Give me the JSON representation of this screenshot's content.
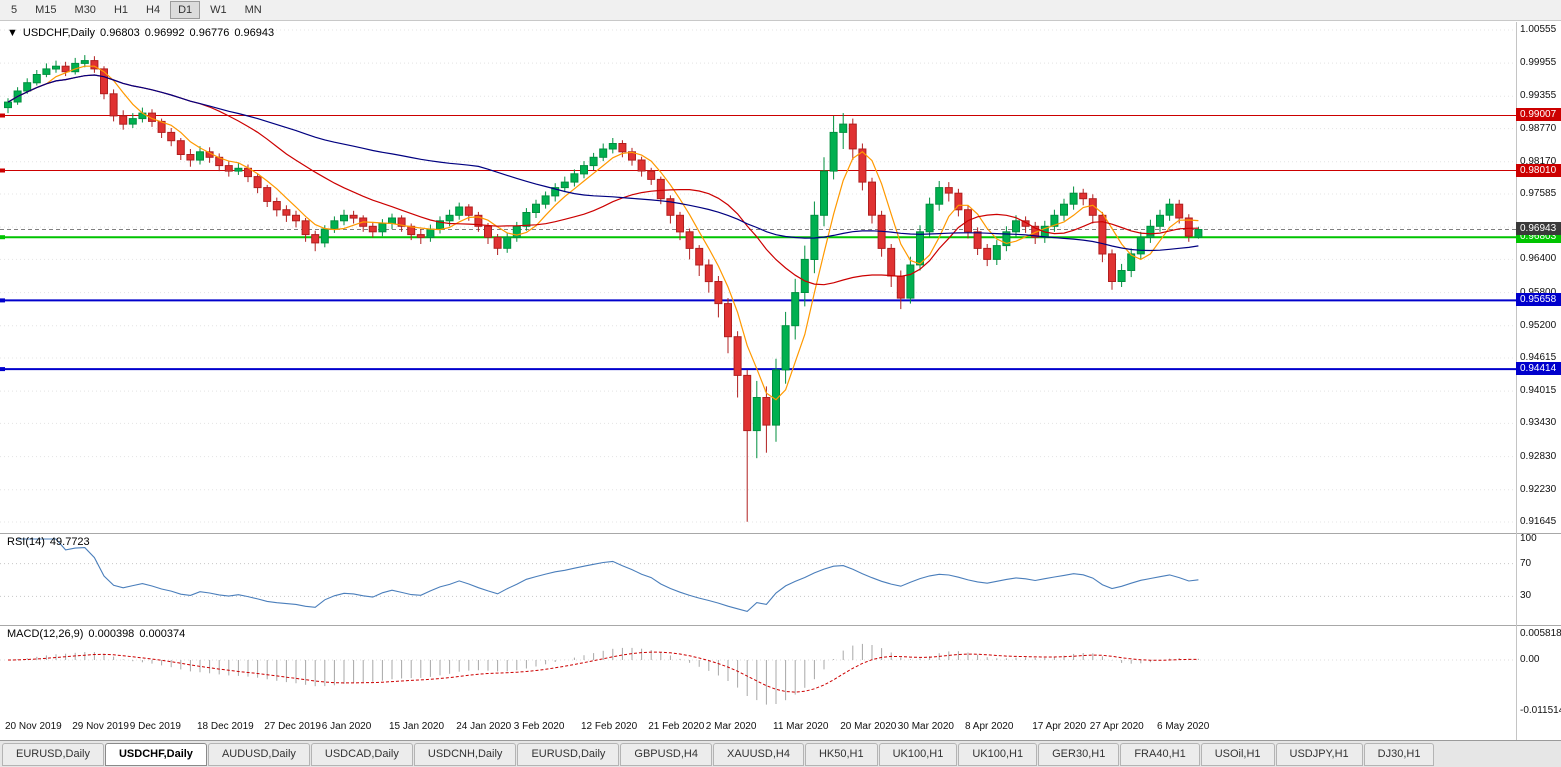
{
  "toolbar": {
    "timeframes": [
      "5",
      "M15",
      "M30",
      "H1",
      "H4",
      "D1",
      "W1",
      "MN"
    ],
    "active": "D1"
  },
  "chart": {
    "symbol_title": "USDCHF,Daily",
    "open": "0.96803",
    "high": "0.96992",
    "low": "0.96776",
    "close": "0.96943",
    "collapse_icon": "▼"
  },
  "levels": [
    {
      "value": 0.99007,
      "label": "0.99007",
      "color": "#cc0000",
      "width": 1
    },
    {
      "value": 0.9801,
      "label": "0.98010",
      "color": "#cc0000",
      "width": 1
    },
    {
      "value": 0.96803,
      "label": "0.96803",
      "color": "#00c400",
      "width": 2
    },
    {
      "value": 0.95658,
      "label": "0.95658",
      "color": "#0000cc",
      "width": 2
    },
    {
      "value": 0.94414,
      "label": "0.94414",
      "color": "#0000cc",
      "width": 2
    }
  ],
  "bid_line": {
    "value": 0.96943,
    "label": "0.96943",
    "color": "#808080",
    "box_color": "#3a3a3a"
  },
  "candle_colors": {
    "up": "#00b050",
    "up_stroke": "#008f3e",
    "down": "#e03232",
    "down_stroke": "#b01f1f"
  },
  "moving_averages": [
    {
      "period": 5,
      "color": "#ff9900"
    },
    {
      "period": 20,
      "color": "#cc0000"
    },
    {
      "period": 50,
      "color": "#000080"
    }
  ],
  "indicators": {
    "rsi": {
      "name": "RSI(14)",
      "value": "49.7723",
      "period": 14,
      "color": "#4a7ebb",
      "level_lines": [
        70,
        30
      ],
      "axis_labels": [
        {
          "label": "100",
          "value": 100
        },
        {
          "label": "70",
          "value": 70
        },
        {
          "label": "30",
          "value": 30
        }
      ]
    },
    "macd": {
      "name": "MACD(12,26,9)",
      "value1": "0.000398",
      "value2": "0.000374",
      "fast": 12,
      "slow": 26,
      "signal": 9,
      "histogram_color": "#a8a8a8",
      "signal_color": "#cc0000",
      "axis_labels": [
        {
          "label": "0.005818",
          "value": 0.005818
        },
        {
          "label": "0.00",
          "value": 0
        },
        {
          "label": "-0.011514",
          "value": -0.011514
        }
      ]
    }
  },
  "chart_data": {
    "type": "candlestick",
    "symbol": "USDCHF",
    "timeframe": "Daily",
    "format": "ohlc",
    "y_axis": {
      "top_value": 1.00555,
      "bottom_value": 0.91645
    },
    "y_ticks": [
      "1.00555",
      "0.99955",
      "0.99355",
      "0.98770",
      "0.98170",
      "0.97585",
      "0.96985",
      "0.96400",
      "0.95800",
      "0.95200",
      "0.94615",
      "0.94015",
      "0.93430",
      "0.92830",
      "0.92230",
      "0.91645"
    ],
    "x_labels": [
      "20 Nov 2019",
      "29 Nov 2019",
      "9 Dec 2019",
      "18 Dec 2019",
      "27 Dec 2019",
      "6 Jan 2020",
      "15 Jan 2020",
      "24 Jan 2020",
      "3 Feb 2020",
      "12 Feb 2020",
      "21 Feb 2020",
      "2 Mar 2020",
      "11 Mar 2020",
      "20 Mar 2020",
      "30 Mar 2020",
      "8 Apr 2020",
      "17 Apr 2020",
      "27 Apr 2020",
      "6 May 2020"
    ],
    "x_label_indices": [
      0,
      7,
      13,
      20,
      27,
      33,
      40,
      47,
      53,
      60,
      67,
      73,
      80,
      87,
      93,
      100,
      107,
      113,
      120
    ],
    "ohlc": [
      [
        0.9915,
        0.9932,
        0.9905,
        0.9925
      ],
      [
        0.9925,
        0.9952,
        0.992,
        0.9945
      ],
      [
        0.9945,
        0.9968,
        0.994,
        0.996
      ],
      [
        0.996,
        0.9983,
        0.9955,
        0.9975
      ],
      [
        0.9975,
        0.9995,
        0.997,
        0.9985
      ],
      [
        0.9985,
        1.0,
        0.9978,
        0.999
      ],
      [
        0.999,
        0.9998,
        0.9972,
        0.998
      ],
      [
        0.998,
        1.0005,
        0.9975,
        0.9995
      ],
      [
        0.9995,
        1.001,
        0.9988,
        1.0
      ],
      [
        1.0,
        1.0008,
        0.9978,
        0.9985
      ],
      [
        0.9985,
        0.999,
        0.993,
        0.994
      ],
      [
        0.994,
        0.9948,
        0.989,
        0.99
      ],
      [
        0.99,
        0.991,
        0.9875,
        0.9885
      ],
      [
        0.9885,
        0.9905,
        0.9878,
        0.9895
      ],
      [
        0.9895,
        0.9915,
        0.9888,
        0.9905
      ],
      [
        0.9905,
        0.9912,
        0.988,
        0.989
      ],
      [
        0.989,
        0.9895,
        0.986,
        0.987
      ],
      [
        0.987,
        0.9878,
        0.9845,
        0.9855
      ],
      [
        0.9855,
        0.986,
        0.982,
        0.983
      ],
      [
        0.983,
        0.984,
        0.9808,
        0.982
      ],
      [
        0.982,
        0.9845,
        0.9812,
        0.9835
      ],
      [
        0.9835,
        0.9843,
        0.9815,
        0.9825
      ],
      [
        0.9825,
        0.9832,
        0.98,
        0.981
      ],
      [
        0.981,
        0.9818,
        0.979,
        0.98
      ],
      [
        0.98,
        0.9815,
        0.9793,
        0.9805
      ],
      [
        0.9805,
        0.9812,
        0.978,
        0.979
      ],
      [
        0.979,
        0.9795,
        0.976,
        0.977
      ],
      [
        0.977,
        0.9775,
        0.9735,
        0.9745
      ],
      [
        0.9745,
        0.9752,
        0.9718,
        0.973
      ],
      [
        0.973,
        0.9738,
        0.9708,
        0.972
      ],
      [
        0.972,
        0.9728,
        0.9698,
        0.971
      ],
      [
        0.971,
        0.9715,
        0.9672,
        0.9685
      ],
      [
        0.9685,
        0.9692,
        0.9655,
        0.967
      ],
      [
        0.967,
        0.9702,
        0.9662,
        0.9695
      ],
      [
        0.9695,
        0.9718,
        0.9688,
        0.971
      ],
      [
        0.971,
        0.973,
        0.9702,
        0.972
      ],
      [
        0.972,
        0.9728,
        0.9705,
        0.9715
      ],
      [
        0.9715,
        0.972,
        0.969,
        0.97
      ],
      [
        0.97,
        0.9708,
        0.968,
        0.969
      ],
      [
        0.969,
        0.9713,
        0.9682,
        0.9705
      ],
      [
        0.9705,
        0.9723,
        0.9695,
        0.9715
      ],
      [
        0.9715,
        0.972,
        0.969,
        0.97
      ],
      [
        0.97,
        0.9705,
        0.9675,
        0.9685
      ],
      [
        0.9685,
        0.9695,
        0.9668,
        0.968
      ],
      [
        0.968,
        0.9703,
        0.9672,
        0.9695
      ],
      [
        0.9695,
        0.9718,
        0.9687,
        0.971
      ],
      [
        0.971,
        0.973,
        0.97,
        0.972
      ],
      [
        0.972,
        0.9743,
        0.9712,
        0.9735
      ],
      [
        0.9735,
        0.974,
        0.971,
        0.972
      ],
      [
        0.972,
        0.9726,
        0.969,
        0.97
      ],
      [
        0.97,
        0.9706,
        0.9668,
        0.968
      ],
      [
        0.968,
        0.9686,
        0.9648,
        0.966
      ],
      [
        0.966,
        0.9688,
        0.9652,
        0.968
      ],
      [
        0.968,
        0.9708,
        0.9672,
        0.97
      ],
      [
        0.97,
        0.9733,
        0.9692,
        0.9725
      ],
      [
        0.9725,
        0.9748,
        0.9715,
        0.974
      ],
      [
        0.974,
        0.9763,
        0.9732,
        0.9755
      ],
      [
        0.9755,
        0.9778,
        0.9745,
        0.977
      ],
      [
        0.977,
        0.979,
        0.9762,
        0.978
      ],
      [
        0.978,
        0.9803,
        0.9772,
        0.9795
      ],
      [
        0.9795,
        0.9818,
        0.9787,
        0.981
      ],
      [
        0.981,
        0.9833,
        0.9802,
        0.9825
      ],
      [
        0.9825,
        0.985,
        0.9818,
        0.984
      ],
      [
        0.984,
        0.986,
        0.9832,
        0.985
      ],
      [
        0.985,
        0.9856,
        0.9825,
        0.9835
      ],
      [
        0.9835,
        0.9842,
        0.981,
        0.982
      ],
      [
        0.982,
        0.9826,
        0.979,
        0.98
      ],
      [
        0.98,
        0.9806,
        0.9775,
        0.9785
      ],
      [
        0.9785,
        0.979,
        0.974,
        0.975
      ],
      [
        0.975,
        0.9756,
        0.9705,
        0.972
      ],
      [
        0.972,
        0.9726,
        0.9675,
        0.969
      ],
      [
        0.969,
        0.9696,
        0.964,
        0.966
      ],
      [
        0.966,
        0.9666,
        0.961,
        0.963
      ],
      [
        0.963,
        0.964,
        0.958,
        0.96
      ],
      [
        0.96,
        0.961,
        0.9535,
        0.956
      ],
      [
        0.956,
        0.957,
        0.947,
        0.95
      ],
      [
        0.95,
        0.951,
        0.939,
        0.943
      ],
      [
        0.943,
        0.944,
        0.9165,
        0.933
      ],
      [
        0.933,
        0.942,
        0.928,
        0.939
      ],
      [
        0.939,
        0.941,
        0.929,
        0.934
      ],
      [
        0.934,
        0.946,
        0.931,
        0.944
      ],
      [
        0.944,
        0.9545,
        0.9415,
        0.952
      ],
      [
        0.952,
        0.9605,
        0.9495,
        0.958
      ],
      [
        0.958,
        0.9665,
        0.9555,
        0.964
      ],
      [
        0.964,
        0.9745,
        0.9615,
        0.972
      ],
      [
        0.972,
        0.9825,
        0.97,
        0.98
      ],
      [
        0.98,
        0.99,
        0.9785,
        0.987
      ],
      [
        0.987,
        0.9905,
        0.984,
        0.9885
      ],
      [
        0.9885,
        0.9895,
        0.982,
        0.984
      ],
      [
        0.984,
        0.985,
        0.9765,
        0.978
      ],
      [
        0.978,
        0.9788,
        0.9705,
        0.972
      ],
      [
        0.972,
        0.9728,
        0.9645,
        0.966
      ],
      [
        0.966,
        0.9668,
        0.959,
        0.961
      ],
      [
        0.961,
        0.962,
        0.955,
        0.957
      ],
      [
        0.957,
        0.9645,
        0.956,
        0.963
      ],
      [
        0.963,
        0.9702,
        0.962,
        0.969
      ],
      [
        0.969,
        0.9752,
        0.968,
        0.974
      ],
      [
        0.974,
        0.9782,
        0.9728,
        0.977
      ],
      [
        0.977,
        0.978,
        0.9745,
        0.976
      ],
      [
        0.976,
        0.9768,
        0.9718,
        0.973
      ],
      [
        0.973,
        0.9738,
        0.9678,
        0.969
      ],
      [
        0.969,
        0.9698,
        0.9648,
        0.966
      ],
      [
        0.966,
        0.9668,
        0.9628,
        0.964
      ],
      [
        0.964,
        0.9675,
        0.963,
        0.9665
      ],
      [
        0.9665,
        0.97,
        0.9655,
        0.969
      ],
      [
        0.969,
        0.972,
        0.968,
        0.971
      ],
      [
        0.971,
        0.9718,
        0.9688,
        0.97
      ],
      [
        0.97,
        0.9708,
        0.9668,
        0.968
      ],
      [
        0.968,
        0.971,
        0.967,
        0.97
      ],
      [
        0.97,
        0.973,
        0.969,
        0.972
      ],
      [
        0.972,
        0.975,
        0.971,
        0.974
      ],
      [
        0.974,
        0.9772,
        0.973,
        0.976
      ],
      [
        0.976,
        0.9768,
        0.9738,
        0.975
      ],
      [
        0.975,
        0.9758,
        0.9705,
        0.972
      ],
      [
        0.972,
        0.9726,
        0.9635,
        0.965
      ],
      [
        0.965,
        0.9658,
        0.9585,
        0.96
      ],
      [
        0.96,
        0.9632,
        0.959,
        0.962
      ],
      [
        0.962,
        0.966,
        0.9608,
        0.965
      ],
      [
        0.965,
        0.969,
        0.964,
        0.968
      ],
      [
        0.968,
        0.9712,
        0.967,
        0.97
      ],
      [
        0.97,
        0.973,
        0.969,
        0.972
      ],
      [
        0.972,
        0.975,
        0.971,
        0.974
      ],
      [
        0.974,
        0.9748,
        0.9705,
        0.9715
      ],
      [
        0.9715,
        0.9722,
        0.9672,
        0.9682
      ],
      [
        0.96803,
        0.96992,
        0.96776,
        0.96943
      ]
    ]
  },
  "tabs": {
    "items": [
      "EURUSD,Daily",
      "USDCHF,Daily",
      "AUDUSD,Daily",
      "USDCAD,Daily",
      "USDCNH,Daily",
      "EURUSD,Daily",
      "GBPUSD,H4",
      "XAUUSD,H4",
      "HK50,H1",
      "UK100,H1",
      "UK100,H1",
      "GER30,H1",
      "FRA40,H1",
      "USOil,H1",
      "USDJPY,H1",
      "DJ30,H1"
    ],
    "active_index": 1
  }
}
